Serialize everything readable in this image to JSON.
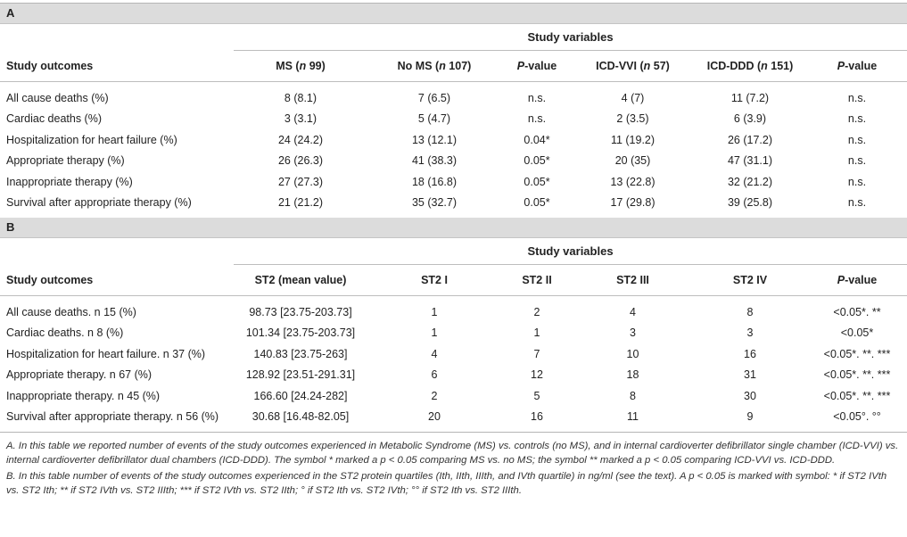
{
  "table_a": {
    "label": "A",
    "group_header": "Study variables",
    "headers": {
      "outcomes": "Study outcomes",
      "ms_pre": "MS (",
      "ms_n": "n",
      "ms_post": " 99)",
      "noms_pre": "No MS (",
      "noms_n": "n",
      "noms_post": " 107)",
      "p1_p": "P",
      "p1_post": "-value",
      "vvi_pre": "ICD-VVI (",
      "vvi_n": "n",
      "vvi_post": " 57)",
      "ddd_pre": "ICD-DDD (",
      "ddd_n": "n",
      "ddd_post": " 151)",
      "p2_p": "P",
      "p2_post": "-value"
    },
    "rows": [
      [
        "All cause deaths (%)",
        "8 (8.1)",
        "7 (6.5)",
        "n.s.",
        "4 (7)",
        "11 (7.2)",
        "n.s."
      ],
      [
        "Cardiac deaths (%)",
        "3 (3.1)",
        "5 (4.7)",
        "n.s.",
        "2 (3.5)",
        "6 (3.9)",
        "n.s."
      ],
      [
        "Hospitalization for heart failure (%)",
        "24 (24.2)",
        "13 (12.1)",
        "0.04*",
        "11 (19.2)",
        "26 (17.2)",
        "n.s."
      ],
      [
        "Appropriate therapy (%)",
        "26 (26.3)",
        "41 (38.3)",
        "0.05*",
        "20 (35)",
        "47 (31.1)",
        "n.s."
      ],
      [
        "Inappropriate therapy (%)",
        "27 (27.3)",
        "18 (16.8)",
        "0.05*",
        "13 (22.8)",
        "32 (21.2)",
        "n.s."
      ],
      [
        "Survival after appropriate therapy (%)",
        "21 (21.2)",
        "35 (32.7)",
        "0.05*",
        "17 (29.8)",
        "39 (25.8)",
        "n.s."
      ]
    ]
  },
  "table_b": {
    "label": "B",
    "group_header": "Study variables",
    "headers": {
      "outcomes": "Study outcomes",
      "st2_mean": "ST2 (mean value)",
      "st2_i": "ST2 I",
      "st2_ii": "ST2 II",
      "st2_iii": "ST2 III",
      "st2_iv": "ST2 IV",
      "p_p": "P",
      "p_post": "-value"
    },
    "rows": [
      [
        "All cause deaths. n 15 (%)",
        "98.73 [23.75-203.73]",
        "1",
        "2",
        "4",
        "8",
        "<0.05*. **"
      ],
      [
        "Cardiac deaths. n 8 (%)",
        "101.34 [23.75-203.73]",
        "1",
        "1",
        "3",
        "3",
        "<0.05*"
      ],
      [
        "Hospitalization for heart failure. n 37 (%)",
        "140.83 [23.75-263]",
        "4",
        "7",
        "10",
        "16",
        "<0.05*. **. ***"
      ],
      [
        "Appropriate therapy. n 67 (%)",
        "128.92 [23.51-291.31]",
        "6",
        "12",
        "18",
        "31",
        "<0.05*. **. ***"
      ],
      [
        "Inappropriate therapy. n 45 (%)",
        "166.60 [24.24-282]",
        "2",
        "5",
        "8",
        "30",
        "<0.05*. **. ***"
      ],
      [
        "Survival after appropriate therapy. n 56 (%)",
        "30.68 [16.48-82.05]",
        "20",
        "16",
        "11",
        "9",
        "<0.05°. °°"
      ]
    ]
  },
  "footnotes": {
    "a": "A. In this table we reported number of events of the study outcomes experienced in Metabolic Syndrome (MS) vs. controls (no MS), and in internal cardioverter defibrillator single chamber (ICD-VVI) vs. internal cardioverter defibrillator dual chambers (ICD-DDD). The symbol * marked a p < 0.05 comparing MS vs. no MS; the symbol ** marked a p < 0.05 comparing ICD-VVI vs. ICD-DDD.",
    "b": "B. In this table number of events of the study outcomes experienced in the ST2 protein quartiles (Ith, IIth, IIIth, and IVth quartile) in ng/ml (see the text). A p < 0.05 is marked with symbol: * if ST2 IVth vs. ST2 Ith; ** if ST2 IVth vs. ST2 IIIth; *** if ST2 IVth vs. ST2 IIth; ° if ST2 Ith vs. ST2 IVth; °° if ST2 Ith vs. ST2 IIIth."
  }
}
